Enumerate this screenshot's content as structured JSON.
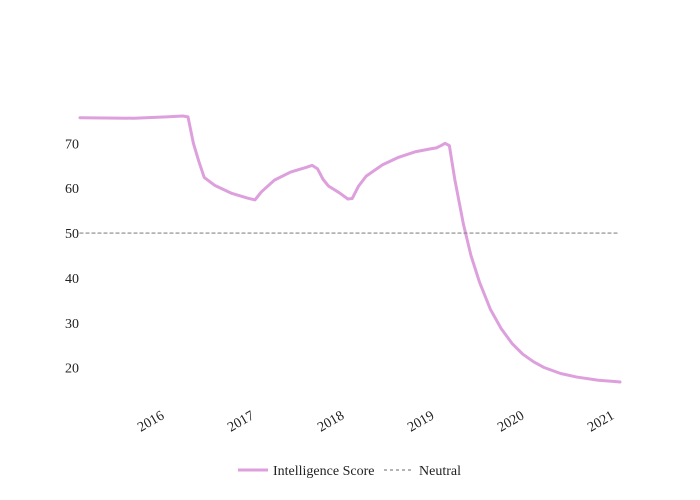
{
  "chart_data": {
    "type": "line",
    "title": "",
    "xlabel": "",
    "ylabel": "",
    "xlim": [
      2015.45,
      2021.0
    ],
    "ylim": [
      13.5,
      83
    ],
    "x_ticks": [
      {
        "value": 2016,
        "label": "2016"
      },
      {
        "value": 2017,
        "label": "2017"
      },
      {
        "value": 2018,
        "label": "2018"
      },
      {
        "value": 2019,
        "label": "2019"
      },
      {
        "value": 2020,
        "label": "2020"
      },
      {
        "value": 2021,
        "label": "2021"
      }
    ],
    "y_ticks": [
      {
        "value": 20,
        "label": "20"
      },
      {
        "value": 30,
        "label": "30"
      },
      {
        "value": 40,
        "label": "40"
      },
      {
        "value": 50,
        "label": "50"
      },
      {
        "value": 60,
        "label": "60"
      },
      {
        "value": 70,
        "label": "70"
      }
    ],
    "grid": false,
    "legend_position": "bottom-center",
    "series": [
      {
        "name": "Intelligence Score",
        "color": "#dda0dd",
        "style": "solid",
        "points": [
          [
            2015.0,
            75.7
          ],
          [
            2015.5,
            75.6
          ],
          [
            2015.8,
            75.9
          ],
          [
            2015.95,
            76.1
          ],
          [
            2016.0,
            75.9
          ],
          [
            2016.05,
            70.0
          ],
          [
            2016.1,
            66.0
          ],
          [
            2016.15,
            62.4
          ],
          [
            2016.25,
            60.6
          ],
          [
            2016.4,
            58.9
          ],
          [
            2016.55,
            57.8
          ],
          [
            2016.62,
            57.4
          ],
          [
            2016.68,
            59.2
          ],
          [
            2016.8,
            61.8
          ],
          [
            2016.95,
            63.6
          ],
          [
            2017.1,
            64.7
          ],
          [
            2017.15,
            65.1
          ],
          [
            2017.2,
            64.3
          ],
          [
            2017.25,
            62.0
          ],
          [
            2017.3,
            60.5
          ],
          [
            2017.4,
            59.0
          ],
          [
            2017.48,
            57.6
          ],
          [
            2017.52,
            57.7
          ],
          [
            2017.58,
            60.5
          ],
          [
            2017.65,
            62.7
          ],
          [
            2017.8,
            65.2
          ],
          [
            2017.95,
            66.9
          ],
          [
            2018.1,
            68.1
          ],
          [
            2018.25,
            68.8
          ],
          [
            2018.3,
            69.0
          ],
          [
            2018.35,
            69.6
          ],
          [
            2018.38,
            70.0
          ],
          [
            2018.42,
            69.5
          ],
          [
            2018.47,
            62.0
          ],
          [
            2018.55,
            52.0
          ],
          [
            2018.62,
            45.0
          ],
          [
            2018.7,
            39.0
          ],
          [
            2018.8,
            33.0
          ],
          [
            2018.9,
            28.7
          ],
          [
            2019.0,
            25.4
          ],
          [
            2019.1,
            23.0
          ],
          [
            2019.2,
            21.3
          ],
          [
            2019.3,
            20.0
          ],
          [
            2019.45,
            18.7
          ],
          [
            2019.6,
            17.9
          ],
          [
            2019.8,
            17.2
          ],
          [
            2019.95,
            16.9
          ],
          [
            2020.0,
            16.8
          ]
        ]
      },
      {
        "name": "Neutral",
        "color": "#888888",
        "style": "dashed",
        "points": [
          [
            2015.0,
            50
          ],
          [
            2020.0,
            50
          ]
        ]
      }
    ]
  }
}
